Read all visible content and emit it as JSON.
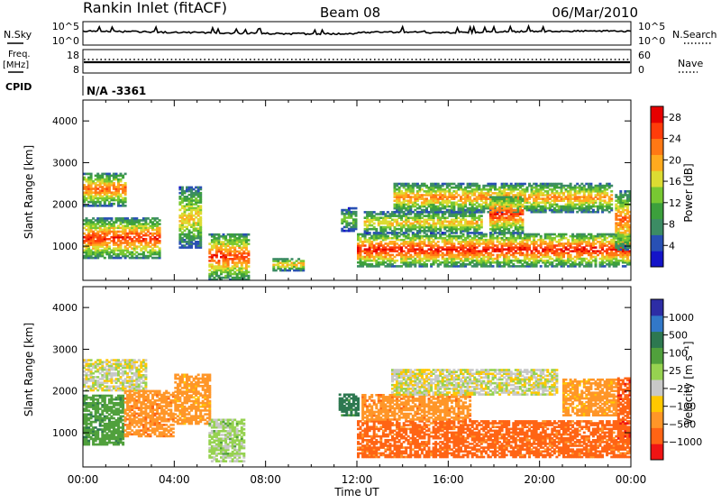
{
  "header": {
    "station": "Rankin Inlet (fitACF)",
    "beam": "Beam 08",
    "date": "06/Mar/2010"
  },
  "status_panels": {
    "nsky_label": "N.Sky",
    "nsearch_label": "N.Search",
    "nsky_ticks": [
      "10^5",
      "10^0"
    ],
    "nsearch_ticks": [
      "10^5",
      "10^0"
    ],
    "freq_label_line1": "Freq.",
    "freq_label_line2": "[MHz]",
    "freq_ticks": [
      "18",
      "8"
    ],
    "nave_label": "Nave",
    "nave_ticks": [
      "60",
      "0"
    ],
    "cpid_label": "CPID",
    "cpid_value": "N/A -3361"
  },
  "chart_data": [
    {
      "type": "heatmap",
      "panel": "power",
      "xlabel": "Time UT",
      "ylabel": "Slant Range [km]",
      "x_ticks": [
        "00:00",
        "04:00",
        "08:00",
        "12:00",
        "16:00",
        "20:00",
        "00:00"
      ],
      "y_ticks": [
        1000,
        2000,
        3000,
        4000
      ],
      "xlim_hours": [
        0,
        24
      ],
      "ylim_km": [
        180,
        4500
      ],
      "colorbar": {
        "label": "Power [dB]",
        "ticks": [
          "4",
          "8",
          "12",
          "16",
          "20",
          "24",
          "28"
        ],
        "range": [
          0,
          30
        ]
      },
      "features": [
        {
          "start_hr": 0.0,
          "end_hr": 1.9,
          "low_km": 1950,
          "high_km": 2750,
          "peak": 24
        },
        {
          "start_hr": 0.0,
          "end_hr": 3.4,
          "low_km": 700,
          "high_km": 1650,
          "peak": 27
        },
        {
          "start_hr": 4.2,
          "end_hr": 5.1,
          "low_km": 950,
          "high_km": 2400,
          "peak": 19
        },
        {
          "start_hr": 5.5,
          "end_hr": 7.2,
          "low_km": 180,
          "high_km": 1300,
          "peak": 26
        },
        {
          "start_hr": 8.3,
          "end_hr": 9.6,
          "low_km": 400,
          "high_km": 700,
          "peak": 20
        },
        {
          "start_hr": 11.3,
          "end_hr": 11.9,
          "low_km": 1350,
          "high_km": 1900,
          "peak": 14
        },
        {
          "start_hr": 12.0,
          "end_hr": 24.0,
          "low_km": 500,
          "high_km": 1300,
          "peak": 28
        },
        {
          "start_hr": 12.3,
          "end_hr": 17.5,
          "low_km": 1300,
          "high_km": 1800,
          "peak": 20
        },
        {
          "start_hr": 13.6,
          "end_hr": 23.2,
          "low_km": 1800,
          "high_km": 2500,
          "peak": 22
        },
        {
          "start_hr": 17.8,
          "end_hr": 19.3,
          "low_km": 1300,
          "high_km": 2200,
          "peak": 27
        },
        {
          "start_hr": 23.3,
          "end_hr": 24.0,
          "low_km": 900,
          "high_km": 2300,
          "peak": 24
        }
      ]
    },
    {
      "type": "heatmap",
      "panel": "velocity",
      "xlabel": "Time UT",
      "ylabel": "Slant Range [km]",
      "x_ticks": [
        "00:00",
        "04:00",
        "08:00",
        "12:00",
        "16:00",
        "20:00",
        "00:00"
      ],
      "y_ticks": [
        1000,
        2000,
        3000,
        4000
      ],
      "xlim_hours": [
        0,
        24
      ],
      "ylim_km": [
        180,
        4500
      ],
      "colorbar": {
        "label": "Velocity [m s⁻¹]",
        "ticks": [
          "1000",
          "500",
          "100",
          "25",
          "−25",
          "−100",
          "−500",
          "−1000"
        ]
      },
      "features": [
        {
          "start_hr": 0.0,
          "end_hr": 2.8,
          "low_km": 2000,
          "high_km": 2750,
          "velocity": 0
        },
        {
          "start_hr": 0.0,
          "end_hr": 1.8,
          "low_km": 700,
          "high_km": 1900,
          "velocity": 200
        },
        {
          "start_hr": 1.8,
          "end_hr": 4.0,
          "low_km": 900,
          "high_km": 2000,
          "velocity": -200
        },
        {
          "start_hr": 4.0,
          "end_hr": 5.5,
          "low_km": 1200,
          "high_km": 2400,
          "velocity": -150
        },
        {
          "start_hr": 5.5,
          "end_hr": 7.0,
          "low_km": 300,
          "high_km": 1300,
          "velocity": 50
        },
        {
          "start_hr": 11.2,
          "end_hr": 12.0,
          "low_km": 1400,
          "high_km": 1900,
          "velocity": 300
        },
        {
          "start_hr": 12.0,
          "end_hr": 24.0,
          "low_km": 400,
          "high_km": 1300,
          "velocity": -300
        },
        {
          "start_hr": 12.2,
          "end_hr": 17.0,
          "low_km": 1300,
          "high_km": 1900,
          "velocity": -200
        },
        {
          "start_hr": 13.5,
          "end_hr": 20.8,
          "low_km": 1900,
          "high_km": 2500,
          "velocity": 0
        },
        {
          "start_hr": 21.0,
          "end_hr": 23.5,
          "low_km": 1400,
          "high_km": 2300,
          "velocity": -150
        },
        {
          "start_hr": 23.4,
          "end_hr": 24.0,
          "low_km": 800,
          "high_km": 2300,
          "velocity": -450
        }
      ]
    }
  ],
  "palettes": {
    "power": [
      "#1414c8",
      "#2850b4",
      "#3c8c64",
      "#3ca03c",
      "#78c832",
      "#dcdc32",
      "#ffaa1e",
      "#ff7814",
      "#ff3c0a",
      "#e60000"
    ],
    "velocity": [
      "#2d2da5",
      "#3278c8",
      "#2d7850",
      "#50a03c",
      "#96d250",
      "#c8c8c8",
      "#ffc800",
      "#ff9628",
      "#ff6414",
      "#f01414"
    ]
  }
}
